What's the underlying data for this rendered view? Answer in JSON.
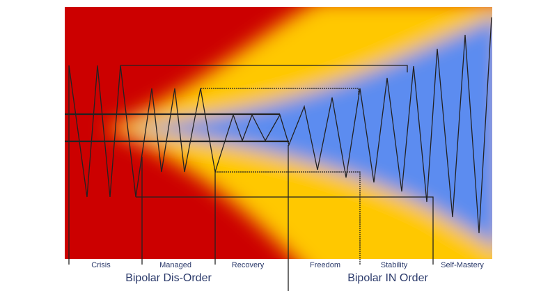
{
  "colors": {
    "red": "#cc0000",
    "yellow": "#ffc800",
    "blue": "#5b8cf0",
    "line": "#222222",
    "text": "#2b3a6b"
  },
  "stages": [
    "Crisis",
    "Managed",
    "Recovery",
    "Freedom",
    "Stability",
    "Self-Mastery"
  ],
  "groups": [
    "Bipolar Dis-Order",
    "Bipolar IN Order"
  ]
}
